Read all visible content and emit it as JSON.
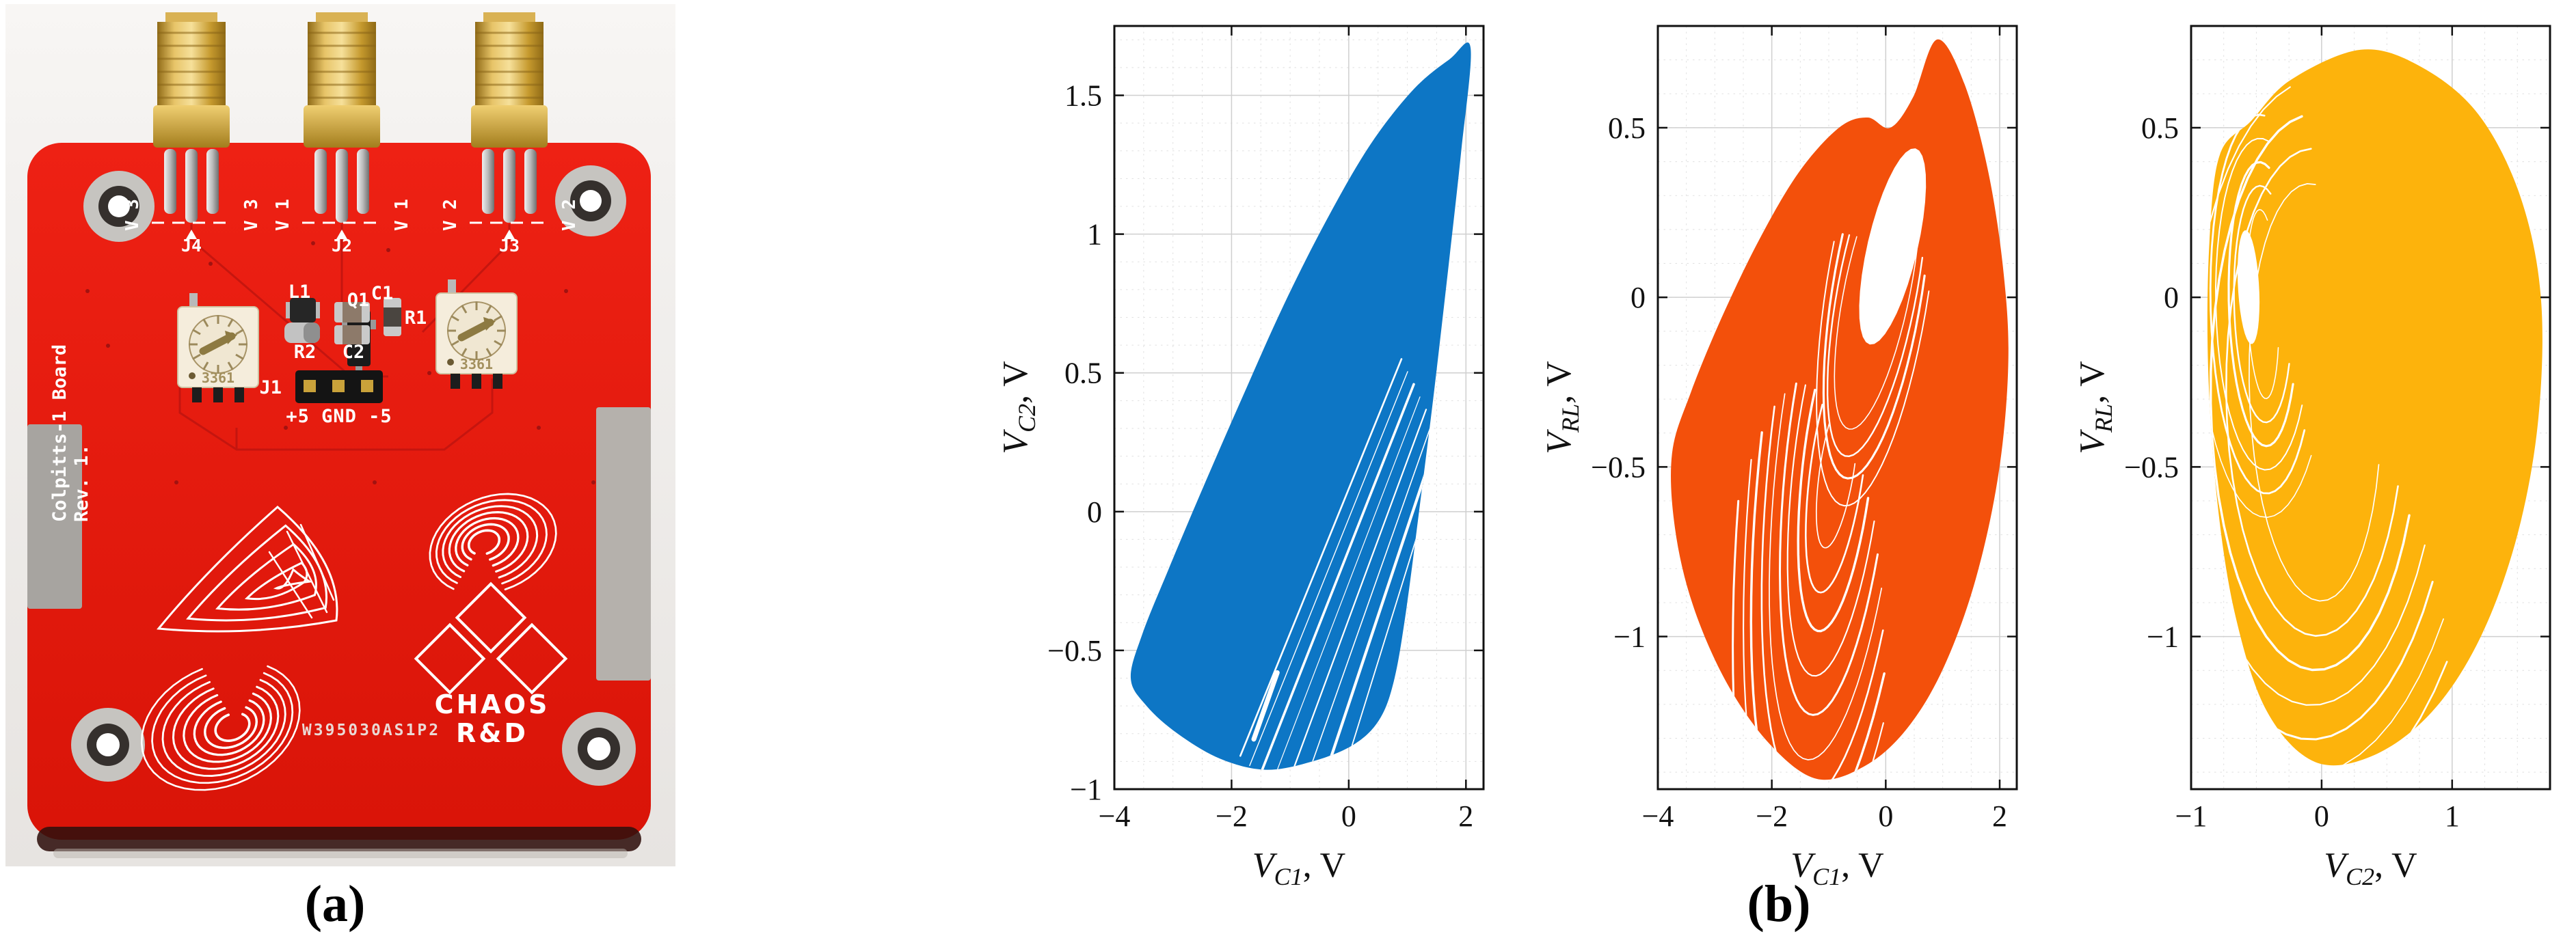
{
  "figure": {
    "caption_a": "(a)",
    "caption_b": "(b)"
  },
  "pcb": {
    "board_color": "#e81d12",
    "silkscreen_color": "#ffffff",
    "side_text_line1": "Colpitts-1 Board",
    "side_text_line2": "Rev. 1.",
    "part_number": "W395030AS1P2",
    "logo_line1": "CHAOS",
    "logo_line2": "R&D",
    "trimmer_marking": "3361",
    "components": [
      "Q1",
      "L1",
      "C1",
      "R1",
      "R2",
      "C2"
    ],
    "header": {
      "designator": "J1",
      "pins_label": "+5 GND -5"
    },
    "connectors": [
      {
        "designator": "J4",
        "net": "V 3"
      },
      {
        "designator": "J2",
        "net": "V 1"
      },
      {
        "designator": "J3",
        "net": "V 2"
      }
    ]
  },
  "chart_data": [
    {
      "type": "line",
      "series_name": "chaotic attractor phase portrait V_C2 vs V_C1",
      "title": "",
      "xlabel": {
        "sym": "V",
        "sub": "C1",
        "unit": ", V"
      },
      "ylabel": {
        "sym": "V",
        "sub": "C2",
        "unit": ", V"
      },
      "xlim": [
        -4,
        2.3
      ],
      "ylim": [
        -1,
        1.75
      ],
      "xticks": [
        -4,
        -2,
        0,
        2
      ],
      "yticks": [
        -1,
        -0.5,
        0,
        0.5,
        1,
        1.5
      ],
      "x_minor": 0.5,
      "y_minor": 0.1,
      "grid": true,
      "minor_grid": true,
      "frame": true,
      "color": "#0d76c5",
      "data_extent": {
        "x": [
          -3.72,
          2.1
        ],
        "y": [
          -0.93,
          1.67
        ]
      },
      "outline": [
        [
          2.08,
          1.67
        ],
        [
          1.92,
          1.3
        ],
        [
          1.7,
          0.88
        ],
        [
          1.46,
          0.44
        ],
        [
          1.2,
          0.0
        ],
        [
          0.97,
          -0.37
        ],
        [
          0.77,
          -0.61
        ],
        [
          0.52,
          -0.75
        ],
        [
          0.08,
          -0.84
        ],
        [
          -0.62,
          -0.9
        ],
        [
          -1.42,
          -0.93
        ],
        [
          -2.2,
          -0.89
        ],
        [
          -2.92,
          -0.8
        ],
        [
          -3.45,
          -0.7
        ],
        [
          -3.72,
          -0.6
        ],
        [
          -3.52,
          -0.44
        ],
        [
          -3.08,
          -0.21
        ],
        [
          -2.48,
          0.09
        ],
        [
          -1.82,
          0.41
        ],
        [
          -1.12,
          0.74
        ],
        [
          -0.38,
          1.05
        ],
        [
          0.36,
          1.32
        ],
        [
          1.1,
          1.52
        ],
        [
          1.72,
          1.63
        ]
      ],
      "hole": null,
      "bands": [],
      "streak_lines": {
        "x1": -1.85,
        "y1": -0.88,
        "x2": 0.9,
        "y2": 0.55,
        "count": 8,
        "dx": 0.15,
        "dy": -0.035
      }
    },
    {
      "type": "line",
      "series_name": "chaotic attractor phase portrait V_RL vs V_C1",
      "title": "",
      "xlabel": {
        "sym": "V",
        "sub": "C1",
        "unit": ", V"
      },
      "ylabel": {
        "sym": "V",
        "sub": "RL",
        "unit": ", V"
      },
      "xlim": [
        -4,
        2.3
      ],
      "ylim": [
        -1.45,
        0.8
      ],
      "xticks": [
        -4,
        -2,
        0,
        2
      ],
      "yticks": [
        -1,
        -0.5,
        0,
        0.5
      ],
      "x_minor": 0.5,
      "y_minor": 0.1,
      "grid": true,
      "minor_grid": true,
      "frame": true,
      "color": "#f3500b",
      "data_extent": {
        "x": [
          -3.75,
          2.15
        ],
        "y": [
          -1.42,
          0.76
        ]
      },
      "outline": [
        [
          0.9,
          0.76
        ],
        [
          1.38,
          0.63
        ],
        [
          1.8,
          0.37
        ],
        [
          2.07,
          0.07
        ],
        [
          2.15,
          -0.2
        ],
        [
          1.98,
          -0.52
        ],
        [
          1.58,
          -0.83
        ],
        [
          1.02,
          -1.09
        ],
        [
          0.38,
          -1.27
        ],
        [
          -0.35,
          -1.38
        ],
        [
          -1.2,
          -1.42
        ],
        [
          -2.02,
          -1.32
        ],
        [
          -2.78,
          -1.14
        ],
        [
          -3.38,
          -0.91
        ],
        [
          -3.7,
          -0.68
        ],
        [
          -3.75,
          -0.46
        ],
        [
          -3.42,
          -0.28
        ],
        [
          -2.88,
          -0.06
        ],
        [
          -2.22,
          0.17
        ],
        [
          -1.52,
          0.37
        ],
        [
          -0.82,
          0.5
        ],
        [
          -0.32,
          0.53
        ],
        [
          0.08,
          0.5
        ],
        [
          0.48,
          0.59
        ]
      ],
      "hole": {
        "cx": 0.12,
        "cy": 0.15,
        "rx": 0.62,
        "ry": 0.21,
        "rot": 20
      },
      "bands": [
        {
          "cx": -0.15,
          "cy": 0.02,
          "rx": 0.8,
          "ry": 0.3,
          "rot": 22,
          "count": 4,
          "gx": 0.1,
          "gy": 0.07,
          "t0": 110,
          "t1": 330,
          "w": 2.4
        },
        {
          "cx": -0.85,
          "cy": -0.5,
          "rx": 0.4,
          "ry": 0.18,
          "rot": 26,
          "count": 10,
          "gx": 0.17,
          "gy": 0.11,
          "t0": 100,
          "t1": 315,
          "w": 2.6
        }
      ],
      "streak_lines": null
    },
    {
      "type": "line",
      "series_name": "chaotic attractor phase portrait V_RL vs V_C2",
      "title": "",
      "xlabel": {
        "sym": "V",
        "sub": "C2",
        "unit": ", V"
      },
      "ylabel": {
        "sym": "V",
        "sub": "RL",
        "unit": ", V"
      },
      "xlim": [
        -1,
        1.75
      ],
      "ylim": [
        -1.45,
        0.8
      ],
      "xticks": [
        -1,
        0,
        1
      ],
      "yticks": [
        -1,
        -0.5,
        0,
        0.5
      ],
      "x_minor": 0.25,
      "y_minor": 0.1,
      "grid": true,
      "minor_grid": true,
      "frame": true,
      "color": "#fdb30c",
      "data_extent": {
        "x": [
          -0.88,
          1.68
        ],
        "y": [
          -1.37,
          0.75
        ]
      },
      "outline": [
        [
          0.3,
          0.73
        ],
        [
          0.76,
          0.68
        ],
        [
          1.2,
          0.54
        ],
        [
          1.52,
          0.3
        ],
        [
          1.68,
          0.0
        ],
        [
          1.66,
          -0.36
        ],
        [
          1.5,
          -0.7
        ],
        [
          1.22,
          -1.0
        ],
        [
          0.85,
          -1.22
        ],
        [
          0.4,
          -1.35
        ],
        [
          -0.05,
          -1.37
        ],
        [
          -0.42,
          -1.22
        ],
        [
          -0.66,
          -0.94
        ],
        [
          -0.8,
          -0.6
        ],
        [
          -0.87,
          -0.2
        ],
        [
          -0.86,
          0.16
        ],
        [
          -0.78,
          0.42
        ],
        [
          -0.54,
          0.52
        ],
        [
          -0.24,
          0.64
        ]
      ],
      "hole": {
        "cx": -0.56,
        "cy": 0.03,
        "rx": 0.08,
        "ry": 0.17,
        "rot": 10
      },
      "bands": [
        {
          "cx": -0.45,
          "cy": -0.02,
          "rx": 0.12,
          "ry": 0.28,
          "rot": 6,
          "count": 6,
          "gx": 0.07,
          "gy": 0.07,
          "t0": 60,
          "t1": 330,
          "w": 2.4
        },
        {
          "cx": -0.05,
          "cy": -0.28,
          "rx": 0.5,
          "ry": 0.62,
          "rot": 12,
          "count": 10,
          "gx": 0.15,
          "gy": 0.1,
          "t0": 75,
          "t1": 330,
          "w": 2.6
        }
      ],
      "streak_lines": null
    }
  ]
}
